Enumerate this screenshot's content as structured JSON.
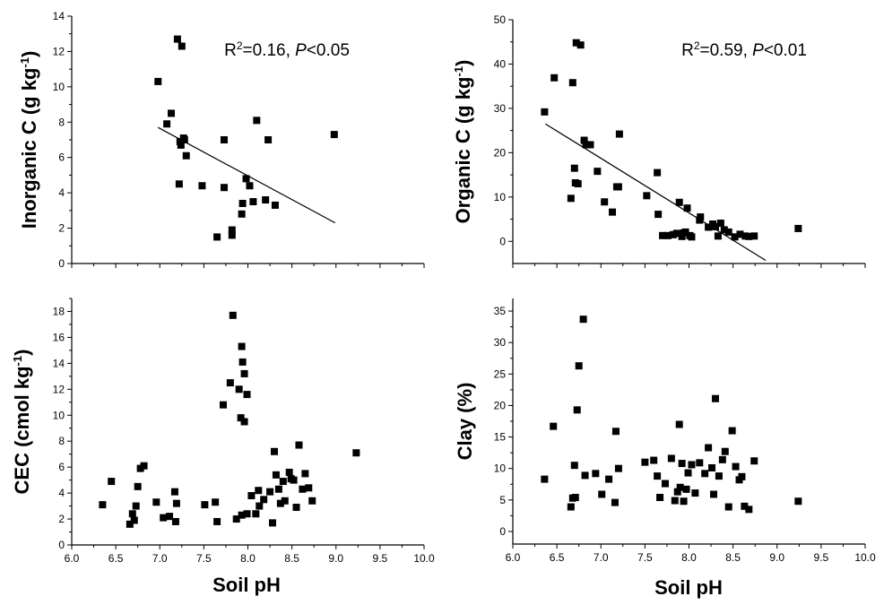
{
  "chart_data": [
    {
      "type": "scatter",
      "panel": "top-left",
      "xlabel": "",
      "ylabel": "Inorganic C (g kg⁻¹)",
      "ylabel_parts": {
        "main": "Inorganic C (g kg",
        "sup": "-1",
        "end": ")"
      },
      "stat": {
        "r2_prefix": "R",
        "r2_sup": "2",
        "r2_value": "=0.16, ",
        "p_italic": "P",
        "p_value": "<0.05"
      },
      "xlim": [
        6.0,
        10.0
      ],
      "ylim": [
        0,
        14
      ],
      "xticks": [
        "6.0",
        "6.5",
        "7.0",
        "7.5",
        "8.0",
        "8.5",
        "9.0",
        "9.5",
        "10.0"
      ],
      "xticks_visible": false,
      "yticks": [
        "0",
        "2",
        "4",
        "6",
        "8",
        "10",
        "12",
        "14"
      ],
      "trend_line": {
        "x": [
          6.98,
          8.99
        ],
        "y": [
          7.7,
          2.3
        ]
      },
      "x": [
        6.98,
        7.08,
        7.13,
        7.2,
        7.23,
        7.24,
        7.25,
        7.27,
        7.28,
        7.3,
        7.22,
        7.48,
        7.65,
        7.73,
        7.73,
        7.82,
        7.82,
        7.93,
        7.94,
        7.98,
        8.02,
        8.06,
        8.1,
        8.2,
        8.23,
        8.31,
        8.98
      ],
      "y": [
        10.3,
        7.9,
        8.5,
        12.7,
        6.9,
        6.7,
        12.3,
        7.1,
        7.0,
        6.1,
        4.5,
        4.4,
        1.5,
        4.3,
        7.0,
        1.6,
        1.9,
        2.8,
        3.4,
        4.8,
        4.4,
        3.5,
        8.1,
        3.6,
        7.0,
        3.3,
        7.3
      ]
    },
    {
      "type": "scatter",
      "panel": "top-right",
      "xlabel": "",
      "ylabel": "Organic C (g kg⁻¹)",
      "ylabel_parts": {
        "main": "Organic C (g kg",
        "sup": "-1",
        "end": ")"
      },
      "stat": {
        "r2_prefix": "R",
        "r2_sup": "2",
        "r2_value": "=0.59, ",
        "p_italic": "P",
        "p_value": "<0.01"
      },
      "xlim": [
        6.0,
        10.0
      ],
      "ylim": [
        -5,
        50
      ],
      "xticks": [
        "6.0",
        "6.5",
        "7.0",
        "7.5",
        "8.0",
        "8.5",
        "9.0",
        "9.5",
        "10.0"
      ],
      "xticks_visible": false,
      "yticks": [
        "0",
        "10",
        "20",
        "30",
        "40",
        "50"
      ],
      "trend_line": {
        "x": [
          6.37,
          8.87
        ],
        "y": [
          26.5,
          -4.3
        ]
      },
      "x": [
        6.36,
        6.47,
        6.68,
        6.72,
        6.74,
        6.77,
        6.81,
        6.83,
        6.88,
        6.96,
        7.04,
        7.13,
        7.18,
        7.2,
        7.21,
        6.66,
        6.7,
        6.71,
        7.52,
        7.64,
        7.65,
        7.7,
        7.76,
        7.82,
        7.86,
        7.89,
        7.92,
        7.94,
        7.96,
        7.98,
        8.01,
        8.03,
        8.12,
        8.13,
        8.22,
        8.27,
        8.3,
        8.33,
        8.36,
        8.4,
        8.45,
        8.52,
        8.58,
        8.64,
        8.68,
        8.74,
        9.24
      ],
      "y": [
        29.2,
        36.9,
        35.8,
        44.8,
        13.0,
        44.3,
        22.8,
        21.8,
        21.8,
        15.8,
        8.9,
        6.6,
        12.3,
        12.3,
        24.2,
        9.7,
        16.5,
        13.2,
        10.3,
        15.5,
        6.1,
        1.3,
        1.3,
        1.5,
        1.8,
        8.8,
        1.1,
        1.9,
        2.1,
        7.5,
        1.3,
        1.0,
        4.8,
        5.5,
        3.2,
        3.9,
        3.3,
        1.2,
        4.1,
        2.6,
        2.1,
        1.0,
        1.6,
        1.2,
        1.1,
        1.2,
        2.9
      ]
    },
    {
      "type": "scatter",
      "panel": "bottom-left",
      "xlabel": "Soil pH",
      "ylabel": "CEC (cmol kg⁻¹)",
      "ylabel_parts": {
        "main": "CEC (cmol kg",
        "sup": "-1",
        "end": ")"
      },
      "xlim": [
        6.0,
        10.0
      ],
      "ylim": [
        0,
        19
      ],
      "xticks": [
        "6.0",
        "6.5",
        "7.0",
        "7.5",
        "8.0",
        "8.5",
        "9.0",
        "9.5",
        "10.0"
      ],
      "xticks_visible": true,
      "yticks": [
        "0",
        "2",
        "4",
        "6",
        "8",
        "10",
        "12",
        "14",
        "16",
        "18"
      ],
      "x": [
        6.35,
        6.45,
        6.66,
        6.69,
        6.71,
        6.73,
        6.75,
        6.78,
        6.82,
        6.96,
        7.04,
        7.11,
        7.17,
        7.18,
        7.19,
        7.51,
        7.63,
        7.65,
        7.72,
        7.8,
        7.83,
        7.87,
        7.9,
        7.92,
        7.93,
        7.94,
        7.96,
        7.99,
        7.96,
        7.93,
        7.99,
        8.04,
        8.09,
        8.12,
        8.13,
        8.18,
        8.25,
        8.28,
        8.3,
        8.32,
        8.35,
        8.37,
        8.4,
        8.42,
        8.47,
        8.49,
        8.52,
        8.55,
        8.58,
        8.62,
        8.65,
        8.69,
        8.73,
        9.23
      ],
      "y": [
        3.1,
        4.9,
        1.6,
        2.4,
        1.9,
        3.0,
        4.5,
        5.9,
        6.1,
        3.3,
        2.1,
        2.2,
        4.1,
        1.8,
        3.2,
        3.1,
        3.3,
        1.8,
        10.8,
        12.5,
        17.7,
        2.0,
        12.0,
        9.8,
        15.3,
        14.1,
        13.2,
        11.6,
        9.5,
        2.3,
        2.4,
        3.8,
        2.4,
        4.2,
        3.0,
        3.5,
        4.1,
        1.7,
        7.2,
        5.4,
        4.3,
        3.2,
        4.9,
        3.4,
        5.6,
        5.1,
        5.0,
        2.9,
        7.7,
        4.3,
        5.5,
        4.4,
        3.4,
        7.1
      ]
    },
    {
      "type": "scatter",
      "panel": "bottom-right",
      "xlabel": "Soil pH",
      "ylabel": "Clay (%)",
      "ylabel_parts": {
        "main": "Clay (%)",
        "sup": "",
        "end": ""
      },
      "xlim": [
        6.0,
        10.0
      ],
      "ylim": [
        -2,
        37
      ],
      "xticks": [
        "6.0",
        "6.5",
        "7.0",
        "7.5",
        "8.0",
        "8.5",
        "9.0",
        "9.5",
        "10.0"
      ],
      "xticks_visible": true,
      "yticks": [
        "0",
        "5",
        "10",
        "15",
        "20",
        "25",
        "30",
        "35"
      ],
      "x": [
        6.36,
        6.46,
        6.66,
        6.68,
        6.7,
        6.71,
        6.73,
        6.75,
        6.8,
        6.82,
        6.94,
        7.01,
        7.09,
        7.16,
        7.17,
        7.2,
        7.5,
        7.6,
        7.64,
        7.67,
        7.73,
        7.8,
        7.84,
        7.87,
        7.89,
        7.9,
        7.92,
        7.94,
        7.97,
        7.99,
        8.03,
        8.07,
        8.12,
        8.18,
        8.22,
        8.26,
        8.28,
        8.3,
        8.34,
        8.38,
        8.41,
        8.45,
        8.49,
        8.53,
        8.57,
        8.6,
        8.63,
        8.68,
        8.74,
        9.24
      ],
      "y": [
        8.3,
        16.7,
        3.9,
        5.3,
        10.5,
        5.4,
        19.3,
        26.3,
        33.7,
        8.9,
        9.2,
        5.9,
        8.3,
        4.6,
        15.9,
        10.0,
        11.0,
        11.3,
        8.8,
        5.4,
        7.6,
        11.6,
        4.9,
        6.3,
        17.0,
        7.0,
        10.8,
        4.8,
        6.7,
        9.3,
        10.6,
        6.1,
        10.9,
        9.2,
        13.3,
        10.1,
        5.9,
        21.1,
        8.8,
        11.4,
        12.7,
        3.9,
        16.0,
        10.3,
        8.2,
        8.7,
        4.0,
        3.5,
        11.2,
        4.8
      ]
    }
  ]
}
